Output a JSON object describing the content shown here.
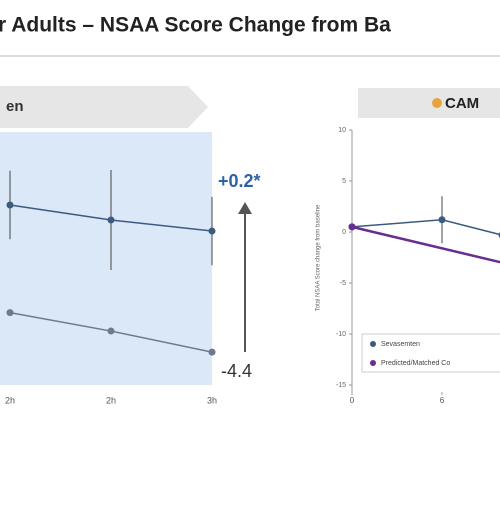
{
  "title": "r Adults – NSAA Score Change from Ba",
  "chart_data": [
    {
      "type": "line",
      "banner": "en",
      "categories": [
        "2h",
        "2h",
        "3h"
      ],
      "ylim": [
        -5.65,
        3.85
      ],
      "series": [
        {
          "name": null,
          "color": "#3d5a80",
          "values": [
            1.19,
            0.62,
            0.2
          ],
          "errors": [
            1.3,
            1.9,
            1.3
          ]
        },
        {
          "name": null,
          "color": "#6b7a8f",
          "values": [
            -2.9,
            -3.6,
            -4.4
          ]
        }
      ],
      "annotations": [
        "+0.2*",
        "-4.4"
      ],
      "background": "#dbe8f7"
    },
    {
      "type": "line",
      "banner": "CAM",
      "ylabel": "Total NSAA Score change from baseline",
      "xlim": [
        0,
        10
      ],
      "xticks": [
        0,
        6
      ],
      "ylim": [
        -15,
        10
      ],
      "yticks": [
        -15,
        -10,
        -5,
        0,
        5,
        10
      ],
      "series": [
        {
          "name": "Sevasemten",
          "color": "#3d5a80",
          "x": [
            0,
            6,
            10
          ],
          "values": [
            0.5,
            1.2,
            -0.3
          ],
          "errors": [
            null,
            2.3,
            null
          ]
        },
        {
          "name": "Predicted/Matched Co",
          "color": "#6a2c91",
          "x": [
            0,
            10
          ],
          "values": [
            0.5,
            -3
          ]
        }
      ]
    }
  ]
}
